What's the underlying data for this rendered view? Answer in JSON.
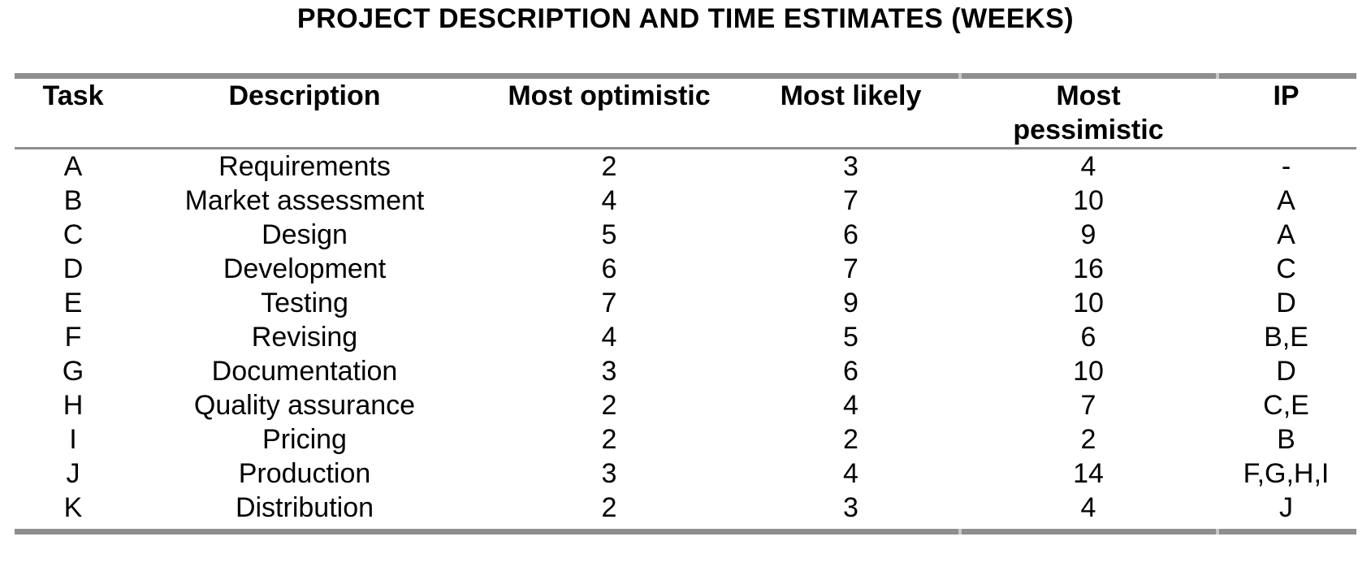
{
  "title": "PROJECT DESCRIPTION AND TIME ESTIMATES (WEEKS)",
  "colors": {
    "rule_gray": "#8e8e8e",
    "rule_gap_gray": "#c6c6c6",
    "text_black": "#000000"
  },
  "table": {
    "columns": [
      "Task",
      "Description",
      "Most optimistic",
      "Most likely",
      "Most pessimistic",
      "IP"
    ],
    "rows": [
      {
        "task": "A",
        "description": "Requirements",
        "optimistic": "2",
        "likely": "3",
        "pessimistic": "4",
        "ip": "-"
      },
      {
        "task": "B",
        "description": "Market assessment",
        "optimistic": "4",
        "likely": "7",
        "pessimistic": "10",
        "ip": "A"
      },
      {
        "task": "C",
        "description": "Design",
        "optimistic": "5",
        "likely": "6",
        "pessimistic": "9",
        "ip": "A"
      },
      {
        "task": "D",
        "description": "Development",
        "optimistic": "6",
        "likely": "7",
        "pessimistic": "16",
        "ip": "C"
      },
      {
        "task": "E",
        "description": "Testing",
        "optimistic": "7",
        "likely": "9",
        "pessimistic": "10",
        "ip": "D"
      },
      {
        "task": "F",
        "description": "Revising",
        "optimistic": "4",
        "likely": "5",
        "pessimistic": "6",
        "ip": "B,E"
      },
      {
        "task": "G",
        "description": "Documentation",
        "optimistic": "3",
        "likely": "6",
        "pessimistic": "10",
        "ip": "D"
      },
      {
        "task": "H",
        "description": "Quality assurance",
        "optimistic": "2",
        "likely": "4",
        "pessimistic": "7",
        "ip": "C,E"
      },
      {
        "task": "I",
        "description": "Pricing",
        "optimistic": "2",
        "likely": "2",
        "pessimistic": "2",
        "ip": "B"
      },
      {
        "task": "J",
        "description": "Production",
        "optimistic": "3",
        "likely": "4",
        "pessimistic": "14",
        "ip": "F,G,H,I"
      },
      {
        "task": "K",
        "description": "Distribution",
        "optimistic": "2",
        "likely": "3",
        "pessimistic": "4",
        "ip": "J"
      }
    ]
  }
}
